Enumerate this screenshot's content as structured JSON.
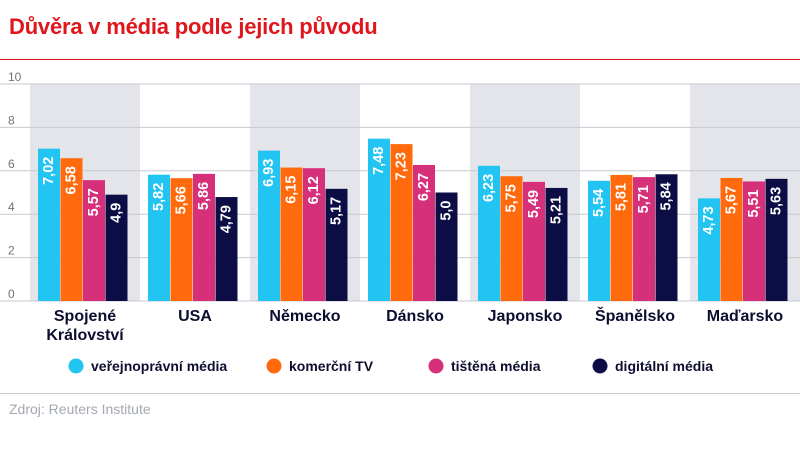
{
  "chart_data": {
    "type": "bar",
    "title": "Důvěra v média podle jejich původu",
    "xlabel": "",
    "ylabel": "",
    "ylim": [
      0,
      10
    ],
    "yticks": [
      0,
      2,
      4,
      6,
      8,
      10
    ],
    "grid": true,
    "legend": "bottom",
    "categories": [
      [
        "Spojené",
        "Království"
      ],
      [
        "USA"
      ],
      [
        "Německo"
      ],
      [
        "Dánsko"
      ],
      [
        "Japonsko"
      ],
      [
        "Španělsko"
      ],
      [
        "Maďarsko"
      ]
    ],
    "series": [
      {
        "name": "veřejnoprávní média",
        "color": "#22c4f2",
        "values": [
          7.02,
          5.82,
          6.93,
          7.48,
          6.23,
          5.54,
          4.73
        ],
        "labels": [
          "7,02",
          "5,82",
          "6,93",
          "7,48",
          "6,23",
          "5,54",
          "4,73"
        ]
      },
      {
        "name": "komerční TV",
        "color": "#ff6a0d",
        "values": [
          6.58,
          5.66,
          6.15,
          7.23,
          5.75,
          5.81,
          5.67
        ],
        "labels": [
          "6,58",
          "5,66",
          "6,15",
          "7,23",
          "5,75",
          "5,81",
          "5,67"
        ]
      },
      {
        "name": "tištěná média",
        "color": "#d6307a",
        "values": [
          5.57,
          5.86,
          6.12,
          6.27,
          5.49,
          5.71,
          5.51
        ],
        "labels": [
          "5,57",
          "5,86",
          "6,12",
          "6,27",
          "5,49",
          "5,71",
          "5,51"
        ]
      },
      {
        "name": "digitální média",
        "color": "#0d0d45",
        "values": [
          4.9,
          4.79,
          5.17,
          5.0,
          5.21,
          5.84,
          5.63
        ],
        "labels": [
          "4,9",
          "4,79",
          "5,17",
          "5,0",
          "5,21",
          "5,84",
          "5,63"
        ]
      }
    ],
    "band_color": "#e4e5ea",
    "grid_color": "#c6c9cf"
  },
  "source": "Zdroj: Reuters Institute"
}
